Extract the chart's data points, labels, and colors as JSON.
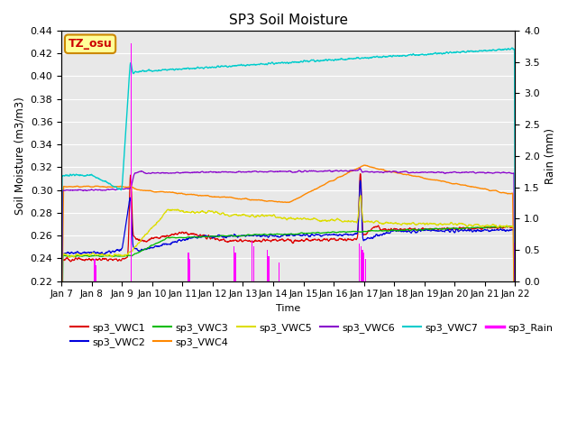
{
  "title": "SP3 Soil Moisture",
  "xlabel": "Time",
  "ylabel_left": "Soil Moisture (m3/m3)",
  "ylabel_right": "Rain (mm)",
  "ylim_left": [
    0.22,
    0.44
  ],
  "ylim_right": [
    0.0,
    4.0
  ],
  "background_color": "#e8e8e8",
  "xtick_labels": [
    "Jan 7",
    "Jan 8",
    "Jan 9",
    "Jan 10",
    "Jan 11",
    "Jan 12",
    "Jan 13",
    "Jan 14",
    "Jan 15",
    "Jan 16",
    "Jan 17",
    "Jan 18",
    "Jan 19",
    "Jan 20",
    "Jan 21",
    "Jan 22"
  ],
  "annotation_box": "TZ_osu",
  "colors": {
    "VWC1": "#dd0000",
    "VWC2": "#0000dd",
    "VWC3": "#00bb00",
    "VWC4": "#ff8800",
    "VWC5": "#dddd00",
    "VWC6": "#8800cc",
    "VWC7": "#00cccc",
    "Rain": "#ff00ff"
  },
  "rain_positions": [
    1.1,
    1.15,
    2.3,
    4.2,
    4.25,
    5.7,
    5.75,
    6.3,
    6.35,
    6.8,
    6.85,
    7.2,
    9.85,
    9.9,
    9.95,
    10.0,
    10.05
  ],
  "rain_heights": [
    0.35,
    0.25,
    3.8,
    0.45,
    0.35,
    0.55,
    0.45,
    0.65,
    0.55,
    0.5,
    0.4,
    0.3,
    0.6,
    0.55,
    0.5,
    0.45,
    0.35
  ]
}
